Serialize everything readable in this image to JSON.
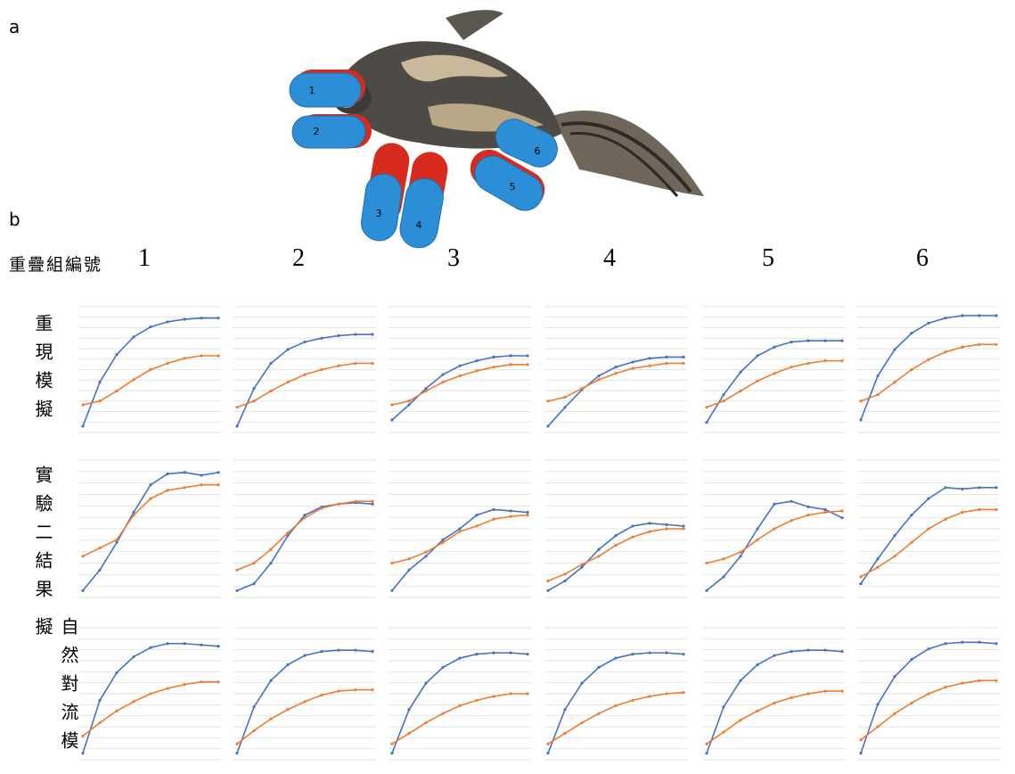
{
  "figure": {
    "panel_a_label": "a",
    "panel_b_label": "b",
    "body_part_labels": [
      "1",
      "2",
      "3",
      "4",
      "5",
      "6"
    ],
    "column_header": "重疊組編號",
    "columns": [
      "1",
      "2",
      "3",
      "4",
      "5",
      "6"
    ],
    "rows": [
      "重現模擬",
      "實驗二結果",
      "自然對流模擬"
    ],
    "charts": {
      "type": "line",
      "ylim": [
        0,
        100
      ],
      "grid": true,
      "panels": [
        [
          {
            "series": [
              {
                "color": "#4472c4",
                "values": [
                  5,
                  40,
                  62,
                  76,
                  84,
                  88,
                  90,
                  91,
                  91
                ]
              },
              {
                "color": "#ed7d31",
                "values": [
                  22,
                  25,
                  33,
                  42,
                  50,
                  55,
                  59,
                  61,
                  61
                ]
              }
            ]
          },
          {
            "series": [
              {
                "color": "#4472c4",
                "values": [
                  5,
                  35,
                  55,
                  66,
                  72,
                  75,
                  77,
                  78,
                  78
                ]
              },
              {
                "color": "#ed7d31",
                "values": [
                  20,
                  25,
                  33,
                  40,
                  46,
                  50,
                  53,
                  55,
                  55
                ]
              }
            ]
          },
          {
            "series": [
              {
                "color": "#4472c4",
                "values": [
                  10,
                  22,
                  35,
                  46,
                  53,
                  57,
                  60,
                  61,
                  61
                ]
              },
              {
                "color": "#ed7d31",
                "values": [
                  22,
                  25,
                  33,
                  40,
                  45,
                  49,
                  52,
                  54,
                  54
                ]
              }
            ]
          },
          {
            "series": [
              {
                "color": "#4472c4",
                "values": [
                  5,
                  20,
                  34,
                  45,
                  52,
                  56,
                  59,
                  60,
                  60
                ]
              },
              {
                "color": "#ed7d31",
                "values": [
                  25,
                  28,
                  35,
                  42,
                  47,
                  51,
                  53,
                  55,
                  55
                ]
              }
            ]
          },
          {
            "series": [
              {
                "color": "#4472c4",
                "values": [
                  8,
                  30,
                  48,
                  61,
                  68,
                  72,
                  73,
                  73,
                  73
                ]
              },
              {
                "color": "#ed7d31",
                "values": [
                  20,
                  25,
                  33,
                  41,
                  47,
                  52,
                  55,
                  57,
                  57
                ]
              }
            ]
          },
          {
            "series": [
              {
                "color": "#4472c4",
                "values": [
                  10,
                  45,
                  66,
                  79,
                  87,
                  91,
                  93,
                  93,
                  93
                ]
              },
              {
                "color": "#ed7d31",
                "values": [
                  25,
                  30,
                  40,
                  50,
                  58,
                  64,
                  68,
                  70,
                  70
                ]
              }
            ]
          }
        ],
        [
          {
            "series": [
              {
                "color": "#4472c4",
                "values": [
                  5,
                  20,
                  40,
                  62,
                  82,
                  90,
                  91,
                  89,
                  91
                ]
              },
              {
                "color": "#ed7d31",
                "values": [
                  30,
                  36,
                  42,
                  60,
                  72,
                  78,
                  80,
                  82,
                  82
                ]
              }
            ]
          },
          {
            "series": [
              {
                "color": "#4472c4",
                "values": [
                  5,
                  10,
                  25,
                  45,
                  60,
                  66,
                  68,
                  69,
                  68
                ]
              },
              {
                "color": "#ed7d31",
                "values": [
                  20,
                  25,
                  35,
                  47,
                  58,
                  65,
                  68,
                  70,
                  70
                ]
              }
            ]
          },
          {
            "series": [
              {
                "color": "#4472c4",
                "values": [
                  5,
                  20,
                  30,
                  42,
                  50,
                  60,
                  64,
                  63,
                  62
                ]
              },
              {
                "color": "#ed7d31",
                "values": [
                  25,
                  28,
                  33,
                  40,
                  48,
                  52,
                  57,
                  59,
                  60
                ]
              }
            ]
          },
          {
            "series": [
              {
                "color": "#4472c4",
                "values": [
                  5,
                  12,
                  22,
                  35,
                  45,
                  52,
                  54,
                  53,
                  52
                ]
              },
              {
                "color": "#ed7d31",
                "values": [
                  12,
                  17,
                  24,
                  30,
                  38,
                  44,
                  48,
                  50,
                  50
                ]
              }
            ]
          },
          {
            "series": [
              {
                "color": "#4472c4",
                "values": [
                  5,
                  15,
                  30,
                  50,
                  68,
                  70,
                  66,
                  64,
                  58
                ]
              },
              {
                "color": "#ed7d31",
                "values": [
                  25,
                  28,
                  33,
                  42,
                  50,
                  56,
                  60,
                  62,
                  63
                ]
              }
            ]
          },
          {
            "series": [
              {
                "color": "#4472c4",
                "values": [
                  10,
                  28,
                  45,
                  60,
                  72,
                  80,
                  79,
                  80,
                  80
                ]
              },
              {
                "color": "#ed7d31",
                "values": [
                  15,
                  22,
                  30,
                  40,
                  50,
                  57,
                  62,
                  64,
                  64
                ]
              }
            ]
          }
        ],
        [
          {
            "series": [
              {
                "color": "#4472c4",
                "values": [
                  5,
                  45,
                  66,
                  78,
                  85,
                  88,
                  88,
                  87,
                  86
                ]
              },
              {
                "color": "#ed7d31",
                "values": [
                  18,
                  28,
                  37,
                  44,
                  50,
                  54,
                  57,
                  59,
                  59
                ]
              }
            ]
          },
          {
            "series": [
              {
                "color": "#4472c4",
                "values": [
                  5,
                  40,
                  60,
                  72,
                  79,
                  82,
                  83,
                  83,
                  82
                ]
              },
              {
                "color": "#ed7d31",
                "values": [
                  12,
                  22,
                  31,
                  38,
                  44,
                  49,
                  52,
                  53,
                  53
                ]
              }
            ]
          },
          {
            "series": [
              {
                "color": "#4472c4",
                "values": [
                  5,
                  38,
                  58,
                  70,
                  77,
                  80,
                  81,
                  81,
                  80
                ]
              },
              {
                "color": "#ed7d31",
                "values": [
                  12,
                  20,
                  28,
                  35,
                  41,
                  45,
                  48,
                  50,
                  50
                ]
              }
            ]
          },
          {
            "series": [
              {
                "color": "#4472c4",
                "values": [
                  5,
                  38,
                  58,
                  70,
                  77,
                  80,
                  81,
                  81,
                  80
                ]
              },
              {
                "color": "#ed7d31",
                "values": [
                  12,
                  20,
                  28,
                  35,
                  41,
                  45,
                  48,
                  50,
                  51
                ]
              }
            ]
          },
          {
            "series": [
              {
                "color": "#4472c4",
                "values": [
                  5,
                  40,
                  60,
                  72,
                  79,
                  82,
                  83,
                  83,
                  82
                ]
              },
              {
                "color": "#ed7d31",
                "values": [
                  12,
                  21,
                  30,
                  37,
                  43,
                  47,
                  50,
                  52,
                  52
                ]
              }
            ]
          },
          {
            "series": [
              {
                "color": "#4472c4",
                "values": [
                  5,
                  42,
                  63,
                  76,
                  84,
                  88,
                  89,
                  89,
                  88
                ]
              },
              {
                "color": "#ed7d31",
                "values": [
                  15,
                  25,
                  35,
                  43,
                  50,
                  55,
                  58,
                  60,
                  60
                ]
              }
            ]
          }
        ]
      ]
    }
  }
}
